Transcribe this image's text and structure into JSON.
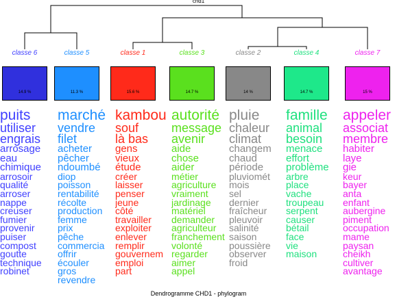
{
  "title": "chd1",
  "footer": "Dendrogramme CHD1 - phylogram",
  "classes": [
    {
      "label": "classe 6",
      "color": "#4040ff",
      "box_color": "#3030dd",
      "percent": "14.9 %",
      "words": [
        "puits",
        "utiliser",
        "engrais",
        "arrosage",
        "eau",
        "chimique",
        "arrosoir",
        "qualité",
        "arroser",
        "nappe",
        "creuser",
        "fumier",
        "provenir",
        "puiser",
        "compost",
        "goutte",
        "technique",
        "robinet"
      ]
    },
    {
      "label": "classe 5",
      "color": "#1e8fff",
      "box_color": "#1e8fff",
      "percent": "11.3 %",
      "words": [
        "marché",
        "vendre",
        "filet",
        "acheter",
        "pêcher",
        "ndoumbé",
        "diop",
        "poisson",
        "rentabilité",
        "récolte",
        "production",
        "femme",
        "prix",
        "pêche",
        "commercia",
        "offrir",
        "écouler",
        "gros",
        "revendre"
      ]
    },
    {
      "label": "classe 1",
      "color": "#ff2a1a",
      "box_color": "#ff2a1a",
      "percent": "15.6 %",
      "words": [
        "kambou",
        "souf",
        "là bas",
        "gens",
        "vieux",
        "étude",
        "créer",
        "laisser",
        "penser",
        "jeune",
        "côté",
        "travailler",
        "exploiter",
        "enlever",
        "remplir",
        "gouvernem",
        "emploi",
        "part"
      ]
    },
    {
      "label": "classe 3",
      "color": "#5ae01e",
      "box_color": "#5ae01e",
      "percent": "14.7 %",
      "words": [
        "autorité",
        "message",
        "avenir",
        "aide",
        "chose",
        "aider",
        "métier",
        "agriculture",
        "vraiment",
        "jardinage",
        "matériel",
        "demander",
        "agriculteur",
        "franchement",
        "volonté",
        "regarder",
        "aimer",
        "appel"
      ]
    },
    {
      "label": "classe 2",
      "color": "#888888",
      "box_color": "#888888",
      "percent": "14 %",
      "words": [
        "pluie",
        "chaleur",
        "climat",
        "changem",
        "chaud",
        "période",
        "pluviomét",
        "mois",
        "sel",
        "dernier",
        "fraîcheur",
        "pleuvoir",
        "salinité",
        "saison",
        "poussière",
        "observer",
        "froid"
      ]
    },
    {
      "label": "classe 4",
      "color": "#1ee07e",
      "box_color": "#1ee88a",
      "percent": "14.7 %",
      "words": [
        "famille",
        "animal",
        "besoin",
        "menace",
        "effort",
        "problème",
        "arbre",
        "place",
        "vache",
        "troupeau",
        "serpent",
        "causer",
        "bétail",
        "face",
        "vie",
        "maison"
      ]
    },
    {
      "label": "classe 7",
      "color": "#ee22ee",
      "box_color": "#ee22ee",
      "percent": "15 %",
      "words": [
        "appeler",
        "associat",
        "membre",
        "habiter",
        "laye",
        "gie",
        "keur",
        "bayer",
        "anta",
        "enfant",
        "aubergine",
        "piment",
        "occupation",
        "mame",
        "paysan",
        "cheikh",
        "cultiver",
        "avantage"
      ]
    }
  ]
}
